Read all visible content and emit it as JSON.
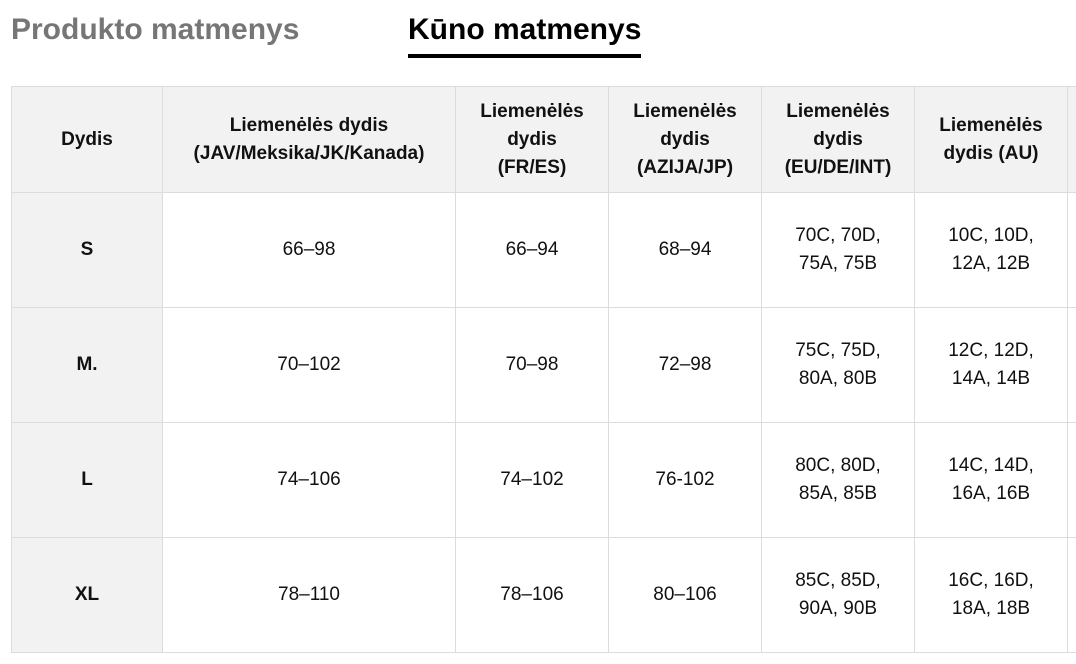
{
  "tabs": {
    "product": "Produkto matmenys",
    "body": "Kūno matmenys"
  },
  "table": {
    "headers": [
      "Dydis",
      "Liemenėlės dydis\n(JAV/Meksika/JK/Kanada)",
      "Liemenėlės\ndydis\n(FR/ES)",
      "Liemenėlės\ndydis\n(AZIJA/JP)",
      "Liemenėlės\ndydis\n(EU/DE/INT)",
      "Liemenėlės\ndydis (AU)"
    ],
    "rows": [
      {
        "size": "S",
        "cells": [
          "66–98",
          "66–94",
          "68–94",
          "70C, 70D,\n75A, 75B",
          "10C, 10D,\n12A, 12B"
        ]
      },
      {
        "size": "M.",
        "cells": [
          "70–102",
          "70–98",
          "72–98",
          "75C, 75D,\n80A, 80B",
          "12C, 12D,\n14A, 14B"
        ]
      },
      {
        "size": "L",
        "cells": [
          "74–106",
          "74–102",
          "76-102",
          "80C, 80D,\n85A, 85B",
          "14C, 14D,\n16A, 16B"
        ]
      },
      {
        "size": "XL",
        "cells": [
          "78–110",
          "78–106",
          "80–106",
          "85C, 85D,\n90A, 90B",
          "16C, 16D,\n18A, 18B"
        ]
      }
    ]
  }
}
